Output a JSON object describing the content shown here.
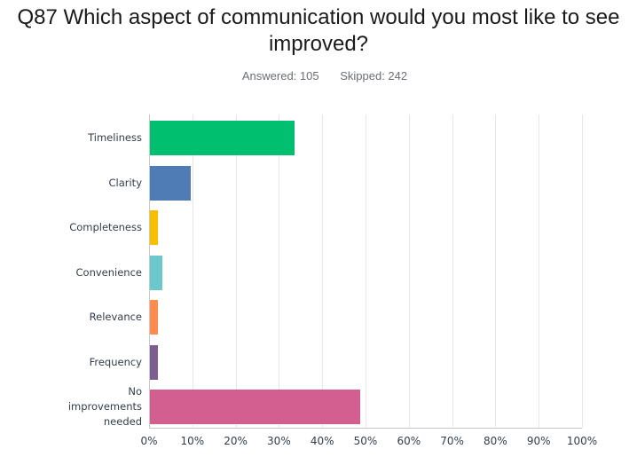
{
  "header": {
    "title": "Q87 Which aspect of communication would you most like to see improved?",
    "answered_label": "Answered: 105",
    "skipped_label": "Skipped: 242"
  },
  "chart_data": {
    "type": "bar",
    "orientation": "horizontal",
    "title": "Q87 Which aspect of communication would you most like to see improved?",
    "subtitle": "Answered: 105    Skipped: 242",
    "xlabel": "",
    "ylabel": "",
    "xlim": [
      0,
      100
    ],
    "grid": true,
    "legend": "none",
    "categories": [
      "Timeliness",
      "Clarity",
      "Completeness",
      "Convenience",
      "Relevance",
      "Frequency",
      "No improvements needed"
    ],
    "values": [
      33.33,
      9.52,
      1.9,
      2.86,
      1.9,
      1.9,
      48.57
    ],
    "colors": [
      "#00bf6f",
      "#507cb6",
      "#f9be00",
      "#6bc8cd",
      "#ff8b4f",
      "#7d5e90",
      "#d25f90"
    ],
    "x_ticks": [
      "0%",
      "10%",
      "20%",
      "30%",
      "40%",
      "50%",
      "60%",
      "70%",
      "80%",
      "90%",
      "100%"
    ]
  }
}
